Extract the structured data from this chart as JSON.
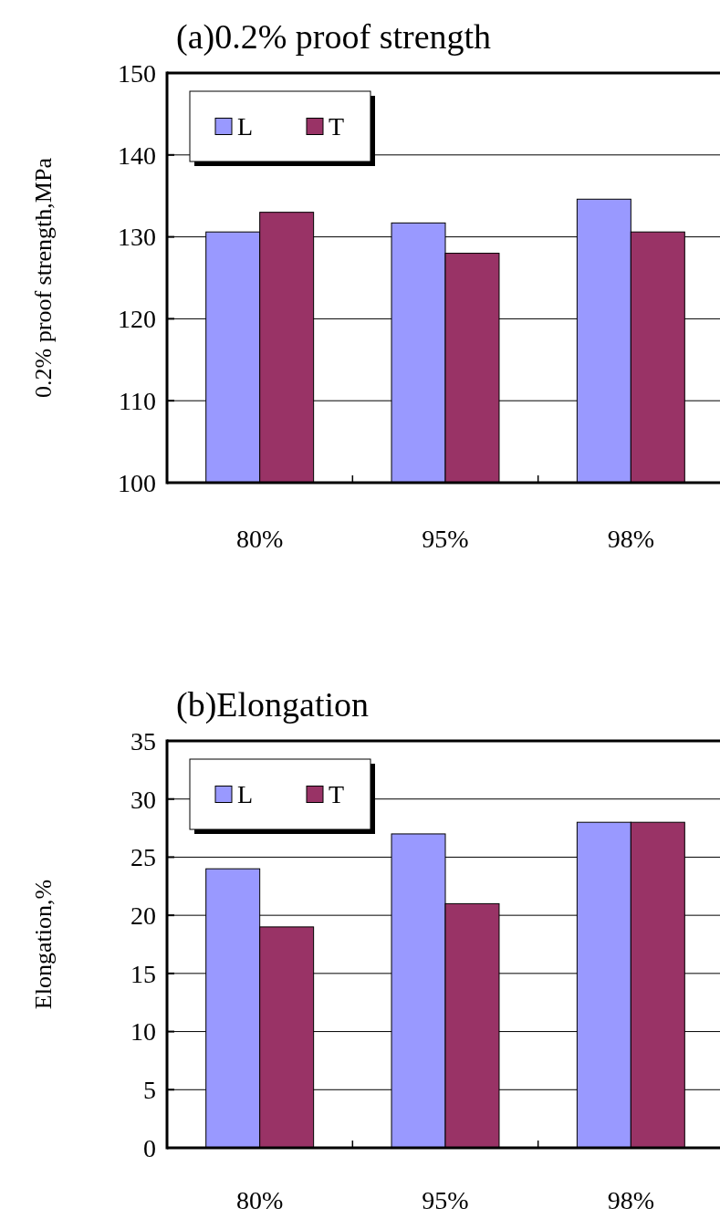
{
  "chart_data": [
    {
      "type": "bar",
      "title": "(a)0.2% proof strength",
      "ylabel": "0.2% proof strength,MPa",
      "categories": [
        "80%",
        "95%",
        "98%"
      ],
      "series": [
        {
          "name": "L",
          "color": "#9999ff",
          "values": [
            130.6,
            131.7,
            134.6
          ]
        },
        {
          "name": "T",
          "color": "#993366",
          "values": [
            133,
            128,
            130.6
          ]
        }
      ],
      "ylim": [
        100,
        150
      ],
      "yticks": [
        100,
        110,
        120,
        130,
        140,
        150
      ],
      "grid": "y",
      "legend": "top left"
    },
    {
      "type": "bar",
      "title": "(b)Elongation",
      "ylabel": "Elongation,%",
      "categories": [
        "80%",
        "95%",
        "98%"
      ],
      "series": [
        {
          "name": "L",
          "color": "#9999ff",
          "values": [
            24,
            27,
            28
          ]
        },
        {
          "name": "T",
          "color": "#993366",
          "values": [
            19,
            21,
            28
          ]
        }
      ],
      "ylim": [
        0,
        35
      ],
      "yticks": [
        0,
        5,
        10,
        15,
        20,
        25,
        30,
        35
      ],
      "grid": "y",
      "legend": "top left"
    }
  ]
}
